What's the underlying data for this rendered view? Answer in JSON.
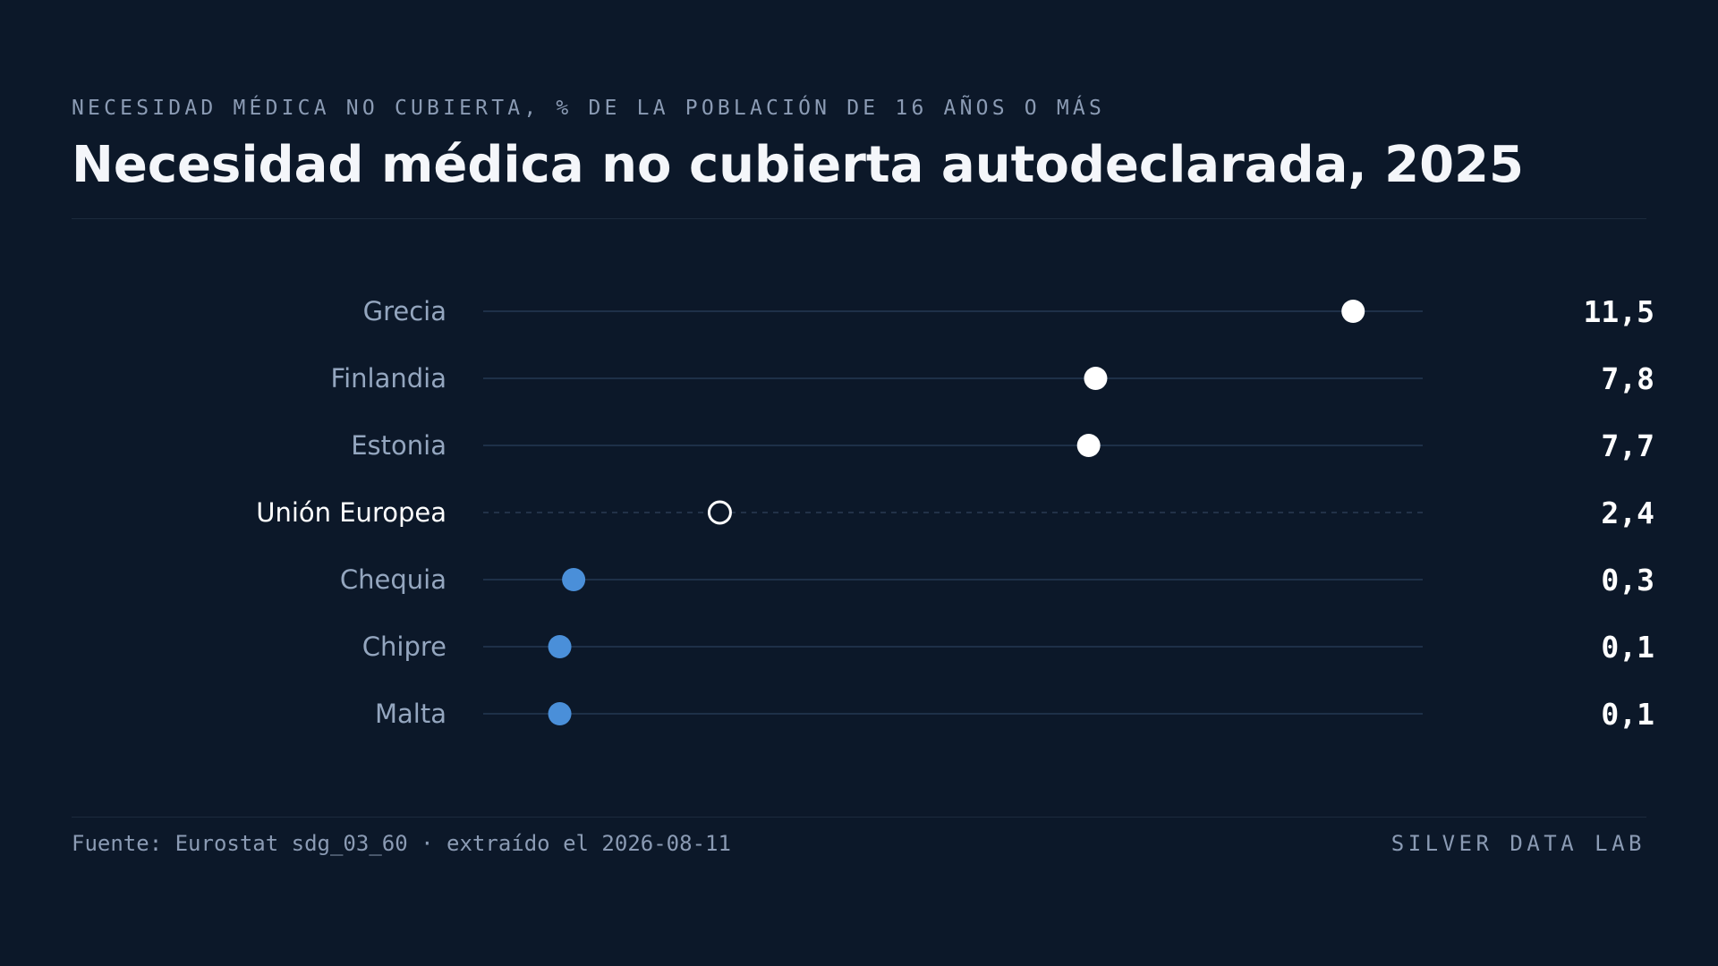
{
  "header": {
    "eyebrow": "NECESIDAD MÉDICA NO CUBIERTA, % DE LA POBLACIÓN DE 16 AÑOS O MÁS",
    "title": "Necesidad médica no cubierta autodeclarada, 2025"
  },
  "chart_data": {
    "type": "dot",
    "title": "Necesidad médica no cubierta autodeclarada, 2025",
    "subtitle": "NECESIDAD MÉDICA NO CUBIERTA, % DE LA POBLACIÓN DE 16 AÑOS O MÁS",
    "xlim": [
      -1.0,
      12.5
    ],
    "grid": false,
    "categories": [
      "Grecia",
      "Finlandia",
      "Estonia",
      "Unión Europea",
      "Chequia",
      "Chipre",
      "Malta"
    ],
    "values": [
      11.5,
      7.8,
      7.7,
      2.4,
      0.3,
      0.1,
      0.1
    ],
    "value_labels": [
      "11,5",
      "7,8",
      "7,7",
      "2,4",
      "0,3",
      "0,1",
      "0,1"
    ],
    "groups": [
      "high",
      "high",
      "high",
      "reference",
      "low",
      "low",
      "low"
    ]
  },
  "colors": {
    "background": "#0c1829",
    "high": "#ffffff",
    "low": "#4a8fd9",
    "reference_stroke": "#ffffff",
    "track": "#1e3048",
    "label": "#94a6bf",
    "reference_label": "#ffffff",
    "value": "#ffffff"
  },
  "footer": {
    "source": "Fuente: Eurostat sdg_03_60 · extraído el 2026-08-11",
    "brand": "SILVER DATA LAB"
  }
}
